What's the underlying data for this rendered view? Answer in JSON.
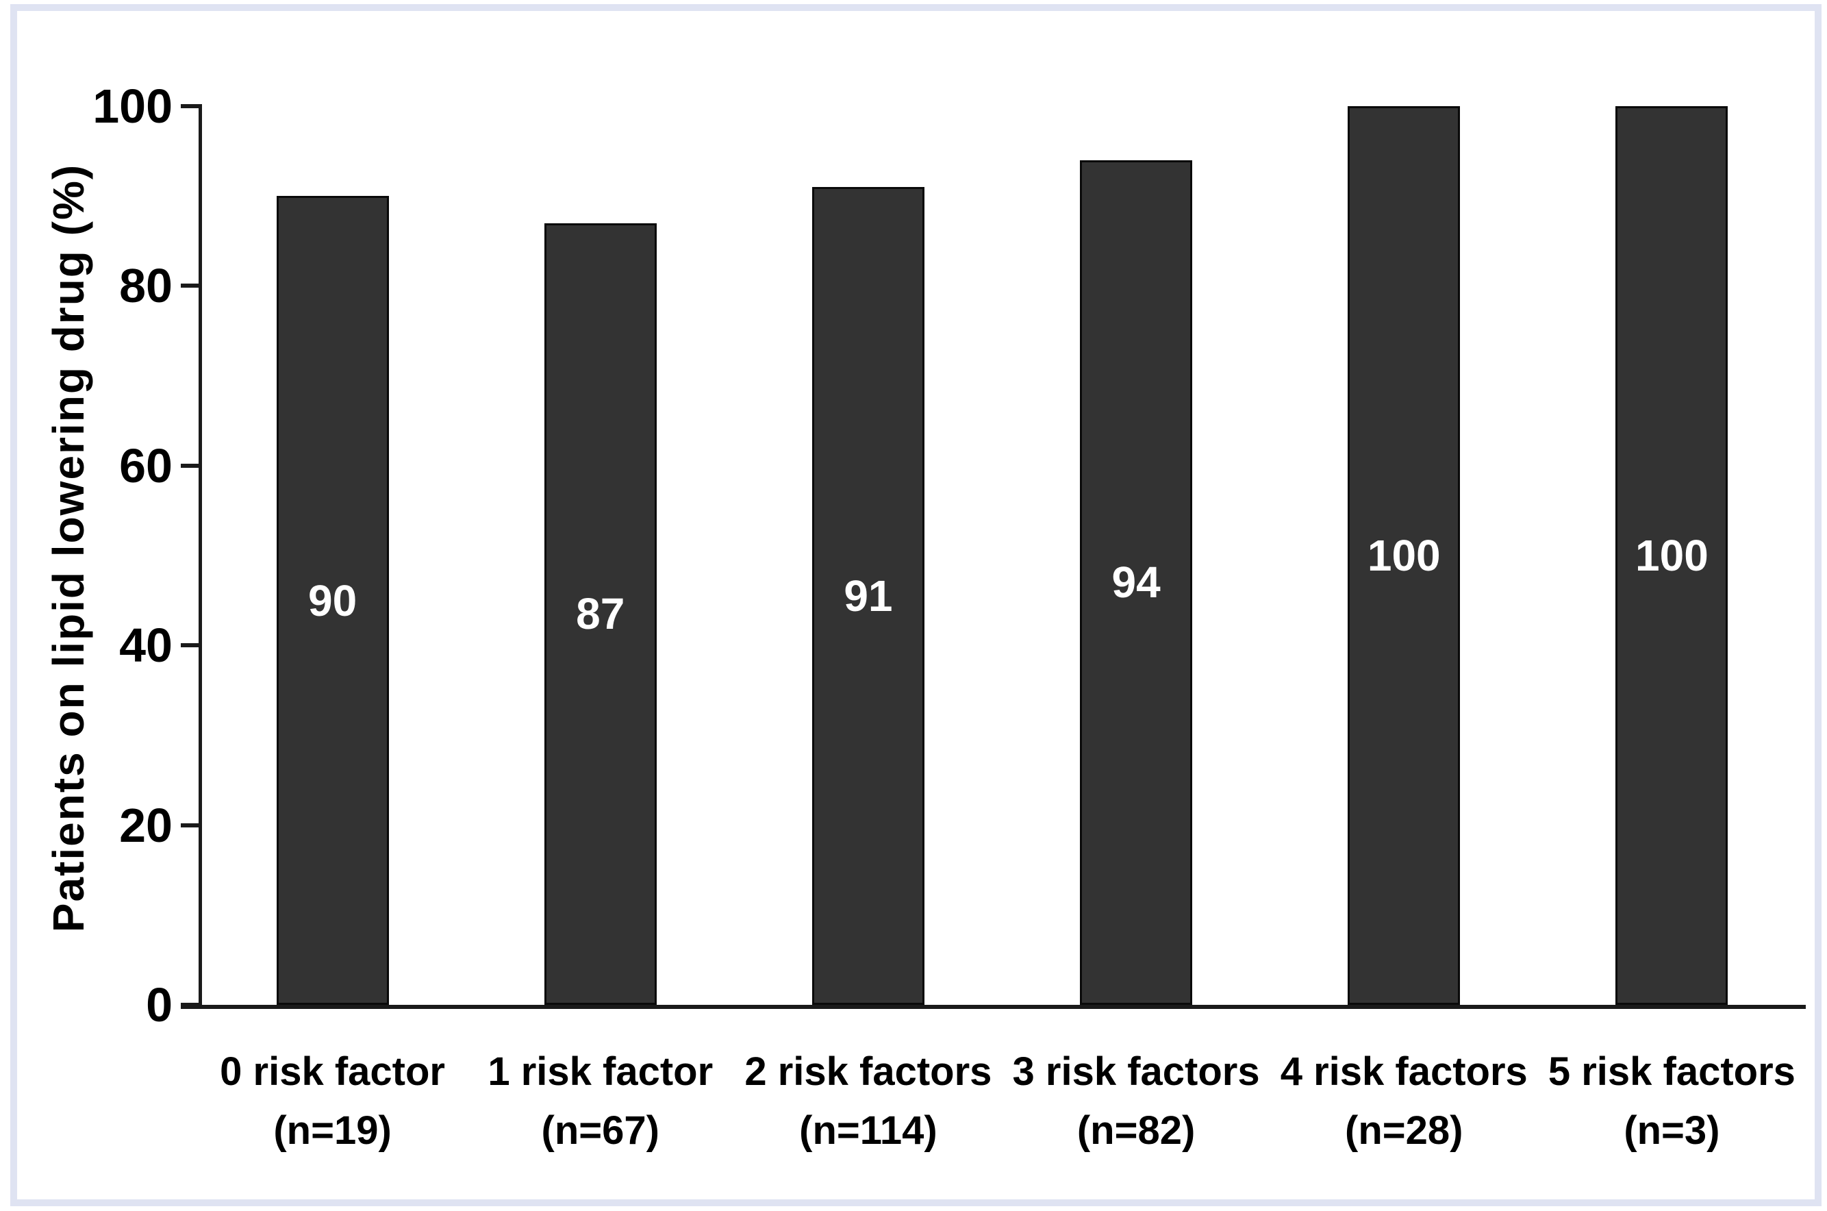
{
  "chart_data": {
    "type": "bar",
    "title": "",
    "xlabel": "",
    "ylabel": "Patients on lipid lowering drug (%)",
    "ylim": [
      0,
      100
    ],
    "yticks": [
      0,
      20,
      40,
      60,
      80,
      100
    ],
    "ytick_labels": [
      "0",
      "20",
      "40",
      "60",
      "80",
      "100"
    ],
    "categories": [
      "0 risk factor",
      "1 risk factor",
      "2 risk factors",
      "3 risk factors",
      "4 risk factors",
      "5 risk factors"
    ],
    "category_sublabels": [
      "(n=19)",
      "(n=67)",
      "(n=114)",
      "(n=82)",
      "(n=28)",
      "(n=3)"
    ],
    "values": [
      90,
      87,
      91,
      94,
      100,
      100
    ],
    "value_labels": [
      "90",
      "87",
      "91",
      "94",
      "100",
      "100"
    ],
    "grid": "off",
    "legend": "none",
    "colors": {
      "bar_fill": "#333333",
      "bar_border": "#0a0a0a",
      "value_label": "#ffffff",
      "axis": "#1a1a1a",
      "frame_border": "#dfe3f2",
      "background": "#ffffff"
    }
  }
}
